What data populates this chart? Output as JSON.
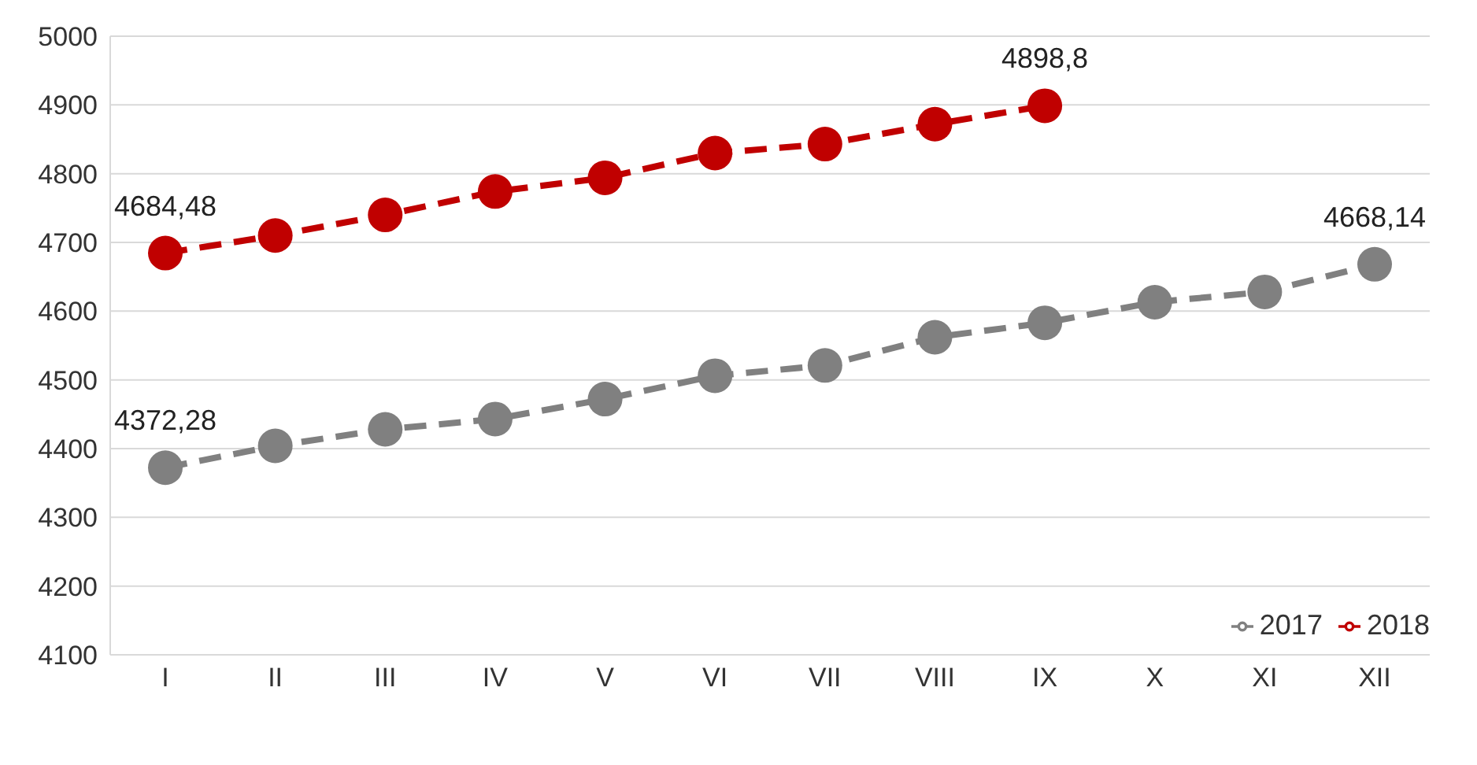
{
  "chart_data": {
    "type": "line",
    "categories": [
      "I",
      "II",
      "III",
      "IV",
      "V",
      "VI",
      "VII",
      "VIII",
      "IX",
      "X",
      "XI",
      "XII"
    ],
    "series": [
      {
        "name": "2017",
        "color": "#808080",
        "values": [
          4372.28,
          4404,
          4428,
          4443,
          4472,
          4506,
          4521,
          4562,
          4583,
          4613,
          4628,
          4668.14
        ],
        "value_labels": [
          "4372,28",
          null,
          null,
          null,
          null,
          null,
          null,
          null,
          null,
          null,
          null,
          "4668,14"
        ]
      },
      {
        "name": "2018",
        "color": "#c00000",
        "values": [
          4684.48,
          4710,
          4740,
          4774,
          4794,
          4830,
          4843,
          4872,
          4898.8,
          null,
          null,
          null
        ],
        "value_labels": [
          "4684,48",
          null,
          null,
          null,
          null,
          null,
          null,
          null,
          "4898,8",
          null,
          null,
          null
        ]
      }
    ],
    "ylim": [
      4100,
      5000
    ],
    "yticks": [
      4100,
      4200,
      4300,
      4400,
      4500,
      4600,
      4700,
      4800,
      4900,
      5000
    ],
    "grid": "y",
    "legend": "bottom right",
    "marker": "circle",
    "line_style": "dashed"
  }
}
